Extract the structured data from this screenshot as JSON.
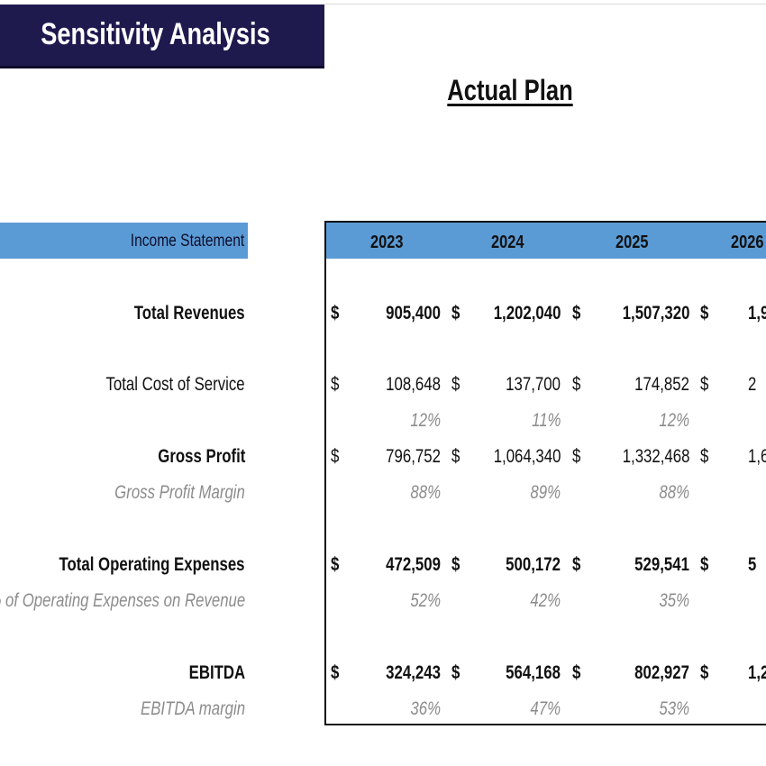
{
  "title": "Sensitivity Analysis",
  "subtitle": "Actual Plan",
  "section_label": "Income Statement",
  "years": [
    "2023",
    "2024",
    "2025",
    "2026"
  ],
  "rows": [
    {
      "label": "Total Revenues",
      "bold": true,
      "currency": true,
      "values": [
        "905,400",
        "1,202,040",
        "1,507,320",
        "1,9"
      ]
    },
    {
      "label": "Total Cost of Service",
      "bold": false,
      "currency": true,
      "values": [
        "108,648",
        "137,700",
        "174,852",
        "2"
      ]
    },
    {
      "label": "",
      "pct": true,
      "values": [
        "12%",
        "11%",
        "12%",
        ""
      ]
    },
    {
      "label": "Gross Profit",
      "bold": true,
      "currency": true,
      "plain_values": true,
      "values": [
        "796,752",
        "1,064,340",
        "1,332,468",
        "1,6"
      ]
    },
    {
      "label": "Gross Profit Margin",
      "pct": true,
      "values": [
        "88%",
        "89%",
        "88%",
        ""
      ]
    },
    {
      "label": "Total Operating Expenses",
      "bold": true,
      "currency": true,
      "values": [
        "472,509",
        "500,172",
        "529,541",
        "5"
      ]
    },
    {
      "label": "% of Operating Expenses on Revenue",
      "pct": true,
      "values": [
        "52%",
        "42%",
        "35%",
        ""
      ]
    },
    {
      "label": "EBITDA",
      "bold": true,
      "currency": true,
      "values": [
        "324,243",
        "564,168",
        "802,927",
        "1,2"
      ]
    },
    {
      "label": "EBITDA margin",
      "pct": true,
      "values": [
        "36%",
        "47%",
        "53%",
        ""
      ]
    }
  ],
  "colors": {
    "banner": "#1f1a4e",
    "header_band": "#5b9bd5",
    "percent_text": "#8c8c8c"
  }
}
